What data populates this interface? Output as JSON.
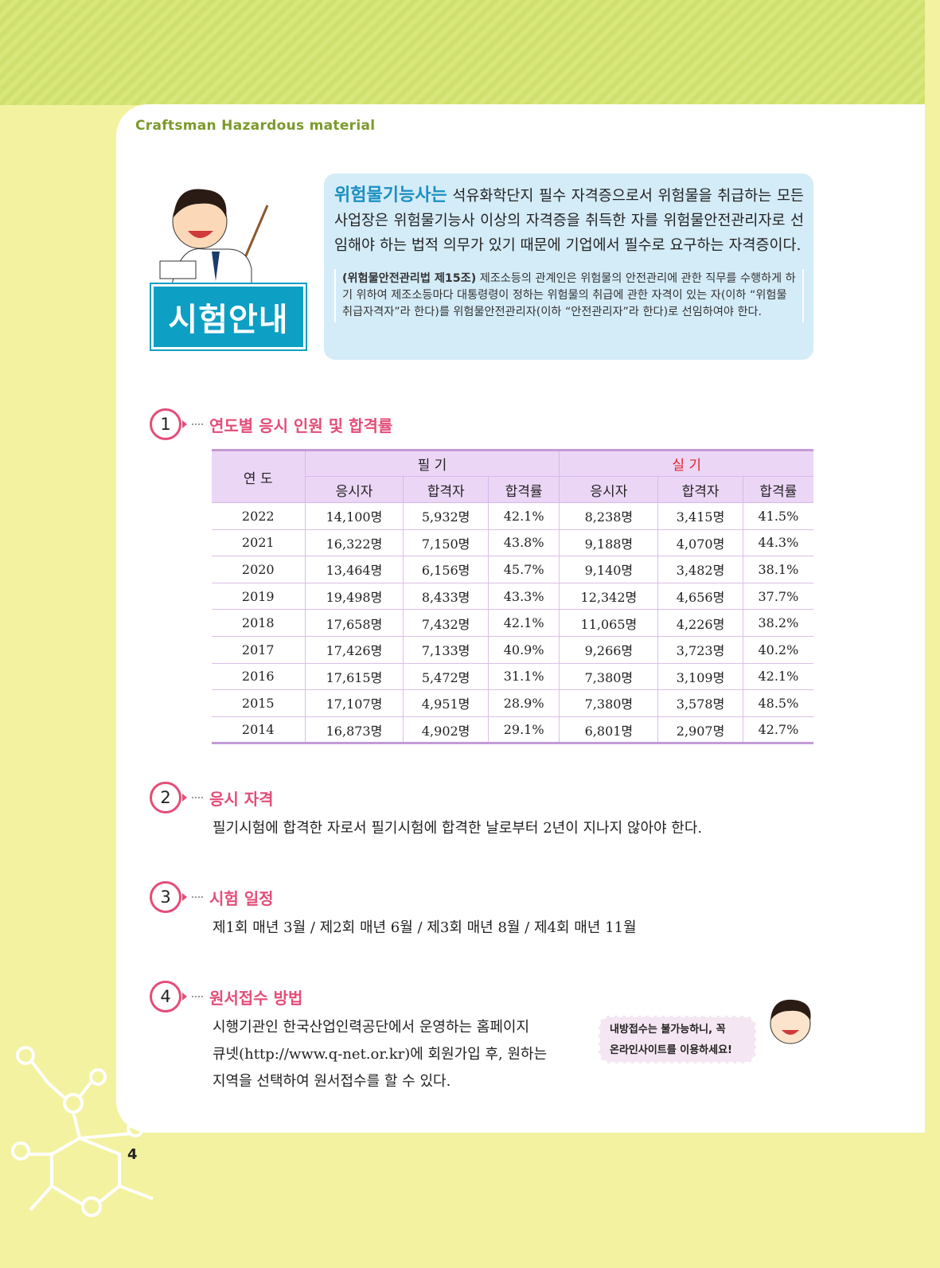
{
  "header": {
    "title": "Craftsman Hazardous material"
  },
  "badge": {
    "label": "시험안내"
  },
  "intro": {
    "highlight": "위험물기능사는",
    "text": " 석유화학단지 필수 자격증으로서 위험물을 취급하는 모든 사업장은 위험물기능사 이상의 자격증을 취득한 자를 위험물안전관리자로 선임해야 하는 법적 의무가 있기 때문에 기업에서 필수로 요구하는 자격증이다.",
    "law_ref": "(위험물안전관리법 제15조)",
    "law_text": " 제조소등의 관계인은 위험물의 안전관리에 관한 직무를 수행하게 하기 위하여 제조소등마다 대통령령이 정하는 위험물의 취급에 관한 자격이 있는 자(이하 “위험물취급자격자”라 한다)를 위험물안전관리자(이하 “안전관리자”라 한다)로 선임하여야 한다."
  },
  "sections": [
    {
      "num": "1",
      "title": "연도별 응시 인원 및 합격률"
    },
    {
      "num": "2",
      "title": "응시 자격",
      "text": "필기시험에 합격한 자로서 필기시험에 합격한 날로부터 2년이 지나지 않아야 한다."
    },
    {
      "num": "3",
      "title": "시험 일정",
      "text": "제1회 매년 3월 / 제2회 매년 6월 / 제3회 매년 8월 / 제4회 매년 11월"
    },
    {
      "num": "4",
      "title": "원서접수 방법",
      "lines": [
        "시행기관인 한국산업인력공단에서 운영하는 홈페이지",
        "큐넷(http://www.q-net.or.kr)에 회원가입 후, 원하는",
        "지역을 선택하여 원서접수를 할 수 있다."
      ]
    }
  ],
  "table": {
    "year_header": "연 도",
    "written": "필 기",
    "practical": "실 기",
    "sub": [
      "응시자",
      "합격자",
      "합격률",
      "응시자",
      "합격자",
      "합격률"
    ],
    "rows": [
      [
        "2022",
        "14,100명",
        "5,932명",
        "42.1%",
        "8,238명",
        "3,415명",
        "41.5%"
      ],
      [
        "2021",
        "16,322명",
        "7,150명",
        "43.8%",
        "9,188명",
        "4,070명",
        "44.3%"
      ],
      [
        "2020",
        "13,464명",
        "6,156명",
        "45.7%",
        "9,140명",
        "3,482명",
        "38.1%"
      ],
      [
        "2019",
        "19,498명",
        "8,433명",
        "43.3%",
        "12,342명",
        "4,656명",
        "37.7%"
      ],
      [
        "2018",
        "17,658명",
        "7,432명",
        "42.1%",
        "11,065명",
        "4,226명",
        "38.2%"
      ],
      [
        "2017",
        "17,426명",
        "7,133명",
        "40.9%",
        "9,266명",
        "3,723명",
        "40.2%"
      ],
      [
        "2016",
        "17,615명",
        "5,472명",
        "31.1%",
        "7,380명",
        "3,109명",
        "42.1%"
      ],
      [
        "2015",
        "17,107명",
        "4,951명",
        "28.9%",
        "7,380명",
        "3,578명",
        "48.5%"
      ],
      [
        "2014",
        "16,873명",
        "4,902명",
        "29.1%",
        "6,801명",
        "2,907명",
        "42.7%"
      ]
    ]
  },
  "bubble": {
    "line1": "내방접수는 불가능하니, 꼭",
    "line2": "온라인사이트를 이용하세요!"
  },
  "page_number": "4",
  "colors": {
    "accent": "#e44d78",
    "badge": "#0e9fc4",
    "table_header": "#ecd6f6",
    "info_bg": "#d4ecf8"
  }
}
